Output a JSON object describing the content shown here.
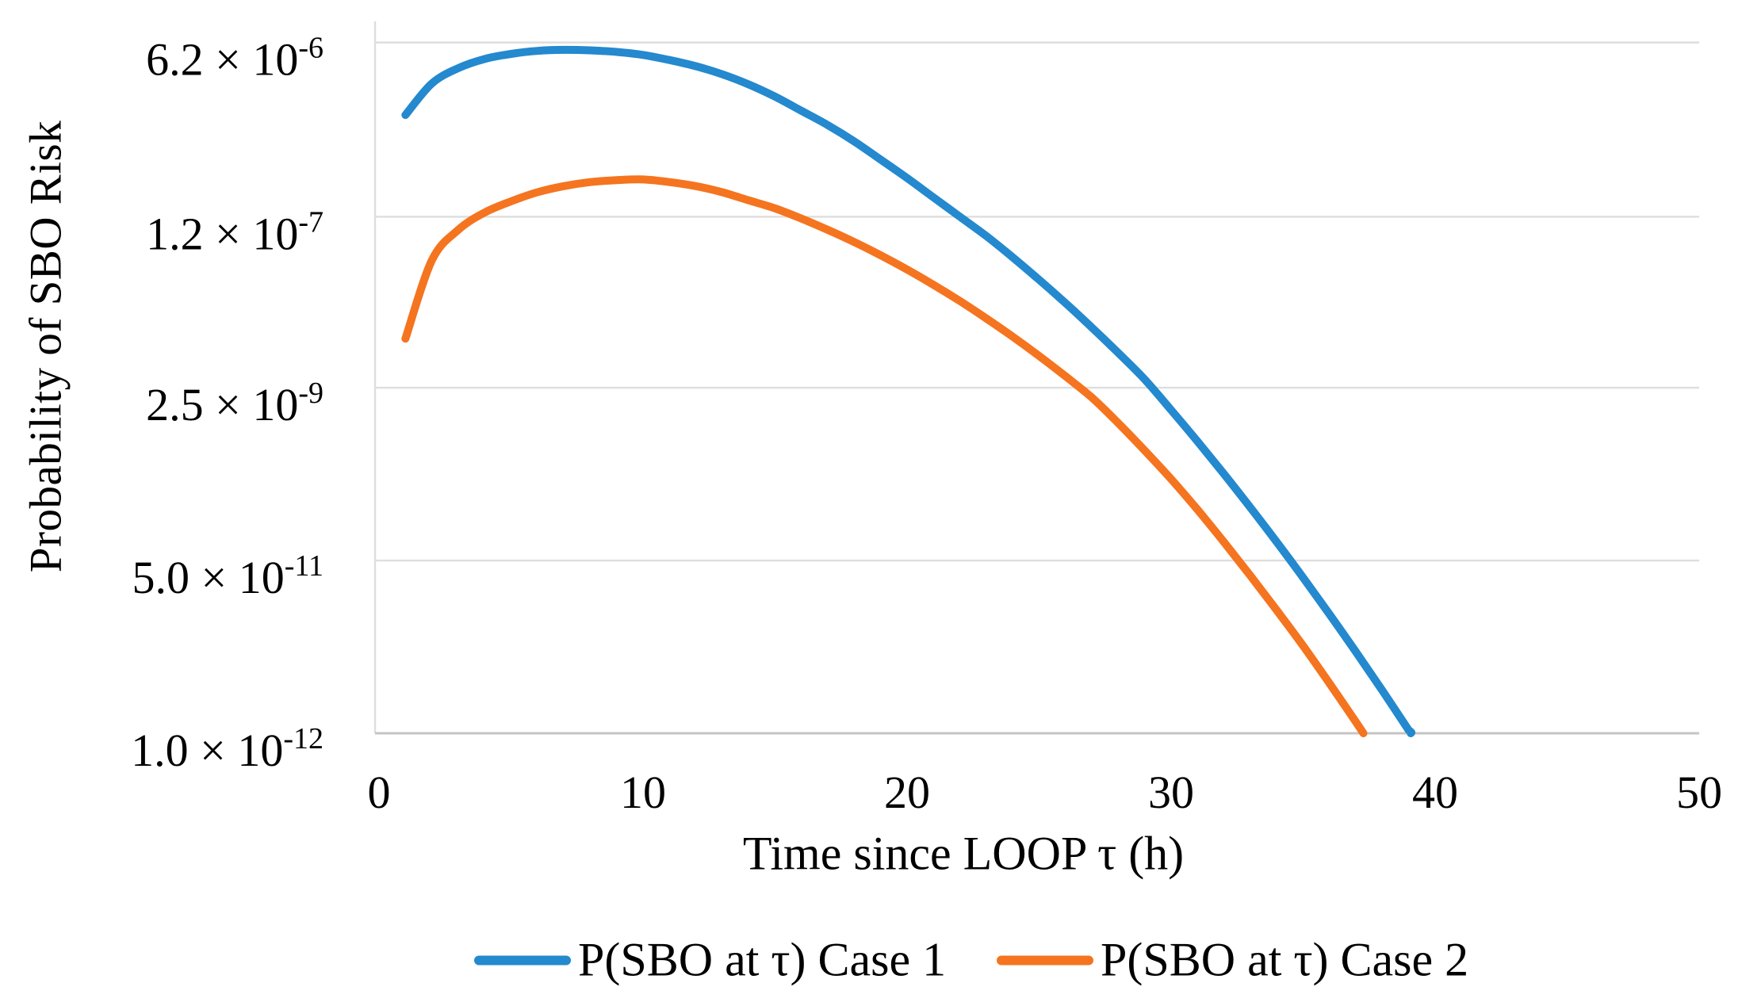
{
  "figure": {
    "background": "#ffffff"
  },
  "chart_data": {
    "type": "line",
    "title": "",
    "xlabel": "Time since LOOP τ (h)",
    "ylabel": "Probability of SBO Risk",
    "grid": true,
    "legend_position": "bottom",
    "x_axis": {
      "min": 0,
      "max": 50,
      "ticks": [
        0,
        10,
        20,
        30,
        40,
        50
      ]
    },
    "y_axis": {
      "scale": "log",
      "min": 1e-12,
      "max": 1e-05,
      "ticks": [
        {
          "value": 6.2e-06,
          "base": "6.2 × 10",
          "exp": "-6"
        },
        {
          "value": 1.2e-07,
          "base": "1.2 × 10",
          "exp": "-7"
        },
        {
          "value": 2.5e-09,
          "base": "2.5 × 10",
          "exp": "-9"
        },
        {
          "value": 5e-11,
          "base": "5.0 × 10",
          "exp": "-11"
        },
        {
          "value": 1e-12,
          "base": "1.0 × 10",
          "exp": "-12"
        }
      ]
    },
    "series": [
      {
        "name": "P(SBO at τ) Case 1",
        "color": "#2489CE",
        "x": [
          1,
          2,
          3,
          4,
          5,
          6,
          7,
          8,
          9,
          10,
          11,
          12,
          13,
          14,
          15,
          16,
          17,
          18,
          19,
          20,
          21,
          22,
          23,
          24,
          25,
          26,
          27,
          28,
          29,
          30,
          31,
          32,
          33,
          34,
          35,
          36,
          37,
          38,
          39,
          40
        ],
        "y": [
          1.2e-06,
          2.45e-06,
          3.47e-06,
          4.27e-06,
          4.79e-06,
          5.13e-06,
          5.25e-06,
          5.19e-06,
          5.01e-06,
          4.68e-06,
          4.17e-06,
          3.63e-06,
          3.02e-06,
          2.4e-06,
          1.82e-06,
          1.32e-06,
          9.55e-07,
          6.61e-07,
          4.37e-07,
          2.88e-07,
          1.86e-07,
          1.2e-07,
          7.76e-08,
          4.79e-08,
          2.88e-08,
          1.7e-08,
          9.77e-09,
          5.5e-09,
          3.02e-09,
          1.51e-09,
          7.41e-10,
          3.55e-10,
          1.66e-10,
          7.59e-11,
          3.39e-11,
          1.48e-11,
          6.31e-12,
          2.63e-12,
          1.07e-12,
          4.27e-13
        ]
      },
      {
        "name": "P(SBO at τ) Case 2",
        "color": "#F5741F",
        "x": [
          1,
          2,
          3,
          4,
          5,
          6,
          7,
          8,
          9,
          10,
          11,
          12,
          13,
          14,
          15,
          16,
          17,
          18,
          19,
          20,
          21,
          22,
          23,
          24,
          25,
          26,
          27,
          28,
          29,
          30,
          31,
          32,
          33,
          34,
          35,
          36,
          37,
          38
        ],
        "y": [
          7.59e-09,
          4.47e-08,
          8.91e-08,
          1.32e-07,
          1.7e-07,
          2.09e-07,
          2.4e-07,
          2.63e-07,
          2.75e-07,
          2.79e-07,
          2.63e-07,
          2.4e-07,
          2.09e-07,
          1.74e-07,
          1.45e-07,
          1.15e-07,
          8.91e-08,
          6.76e-08,
          5.01e-08,
          3.63e-08,
          2.57e-08,
          1.78e-08,
          1.2e-08,
          7.94e-09,
          5.13e-09,
          3.24e-09,
          2e-09,
          1.12e-09,
          6.03e-10,
          3.16e-10,
          1.58e-10,
          7.59e-11,
          3.55e-11,
          1.62e-11,
          7.24e-12,
          3.09e-12,
          1.29e-12,
          5.25e-13
        ]
      }
    ]
  },
  "colors": {
    "gridline": "#DEDEDE",
    "axis_line": "#C4C4C4",
    "text": "#000000"
  }
}
